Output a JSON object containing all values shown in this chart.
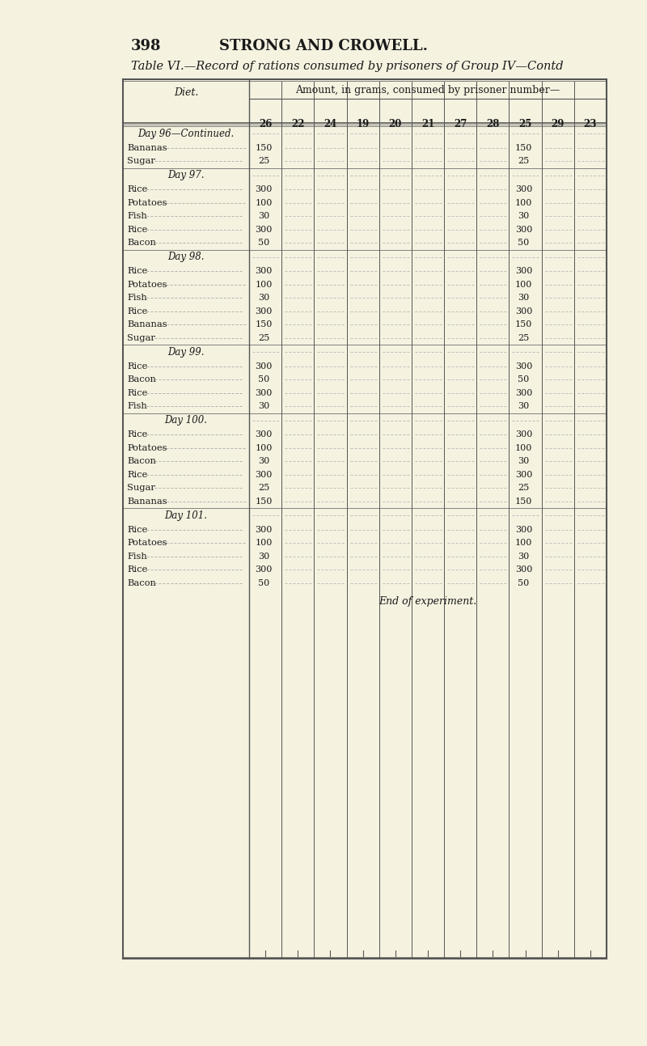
{
  "page_number": "398",
  "page_header": "STRONG AND CROWELL.",
  "table_title": "Table VI.—Record of rations consumed by prisoners of Group IV—Contd",
  "header_row1": "Amount, in grams, consumed by prisoner number—",
  "diet_col": "Diet.",
  "prisoner_cols": [
    "26",
    "22",
    "24",
    "19",
    "20",
    "21",
    "27",
    "28",
    "25",
    "29",
    "23"
  ],
  "sections": [
    {
      "day_label": "Day 96—Continued.",
      "rows": [
        {
          "diet": "Bananas",
          "col26": "150",
          "col25": "150"
        },
        {
          "diet": "Sugar",
          "col26": "25",
          "col25": "25"
        }
      ]
    },
    {
      "day_label": "Day 97.",
      "rows": [
        {
          "diet": "Rice",
          "col26": "300",
          "col25": "300"
        },
        {
          "diet": "Potatoes",
          "col26": "100",
          "col25": "100"
        },
        {
          "diet": "Fish",
          "col26": "30",
          "col25": "30"
        },
        {
          "diet": "Rice",
          "col26": "300",
          "col25": "300"
        },
        {
          "diet": "Bacon",
          "col26": "50",
          "col25": "50"
        }
      ]
    },
    {
      "day_label": "Day 98.",
      "rows": [
        {
          "diet": "Rice",
          "col26": "300",
          "col25": "300"
        },
        {
          "diet": "Potatoes",
          "col26": "100",
          "col25": "100"
        },
        {
          "diet": "Fish",
          "col26": "30",
          "col25": "30"
        },
        {
          "diet": "Rice",
          "col26": "300",
          "col25": "300"
        },
        {
          "diet": "Bananas",
          "col26": "150",
          "col25": "150"
        },
        {
          "diet": "Sugar",
          "col26": "25",
          "col25": "25"
        }
      ]
    },
    {
      "day_label": "Day 99.",
      "rows": [
        {
          "diet": "Rice",
          "col26": "300",
          "col25": "300"
        },
        {
          "diet": "Bacon",
          "col26": "50",
          "col25": "50"
        },
        {
          "diet": "Rice",
          "col26": "300",
          "col25": "300"
        },
        {
          "diet": "Fish",
          "col26": "30",
          "col25": "30"
        }
      ]
    },
    {
      "day_label": "Day 100.",
      "rows": [
        {
          "diet": "Rice",
          "col26": "300",
          "col25": "300"
        },
        {
          "diet": "Potatoes",
          "col26": "100",
          "col25": "100"
        },
        {
          "diet": "Bacon",
          "col26": "30",
          "col25": "30"
        },
        {
          "diet": "Rice",
          "col26": "300",
          "col25": "300"
        },
        {
          "diet": "Sugar",
          "col26": "25",
          "col25": "25"
        },
        {
          "diet": "Bananas",
          "col26": "150",
          "col25": "150"
        }
      ]
    },
    {
      "day_label": "Day 101.",
      "rows": [
        {
          "diet": "Rice",
          "col26": "300",
          "col25": "300"
        },
        {
          "diet": "Potatoes",
          "col26": "100",
          "col25": "100"
        },
        {
          "diet": "Fish",
          "col26": "30",
          "col25": "30"
        },
        {
          "diet": "Rice",
          "col26": "300",
          "col25": "300"
        },
        {
          "diet": "Bacon",
          "col26": "50",
          "col25": "50"
        }
      ]
    }
  ],
  "footer": "End of experiment.",
  "bg_color": "#f5f2e0",
  "table_bg": "#faf8ee",
  "text_color": "#1a1a1a",
  "line_color": "#555555",
  "dashed_color": "#888888"
}
